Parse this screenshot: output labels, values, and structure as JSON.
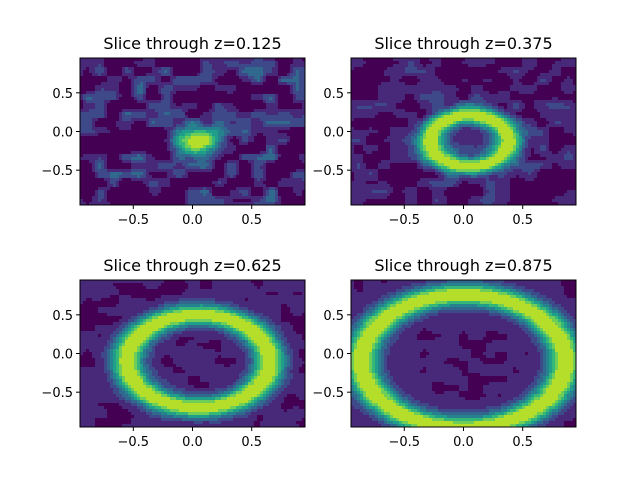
{
  "colormap": [
    "#440154",
    "#482878",
    "#3e4989",
    "#31688e",
    "#26828e",
    "#1f9e89",
    "#35b779",
    "#6ece58",
    "#b5de2b",
    "#fde725"
  ],
  "chart_data": [
    {
      "type": "contour",
      "title": "Slice through z=0.125",
      "xlim": [
        -0.95,
        0.95
      ],
      "ylim": [
        -0.95,
        0.95
      ],
      "xticks": [
        -0.5,
        0.0,
        0.5
      ],
      "xtick_labels": [
        "−0.5",
        "0.0",
        "0.5"
      ],
      "yticks": [
        0.5,
        0.0,
        -0.5
      ],
      "ytick_labels": [
        "0.5",
        "0.0",
        "−0.5"
      ],
      "field": {
        "shape": "blob",
        "center": [
          0.05,
          -0.12
        ],
        "radius": 0.0,
        "width": 0.2,
        "noise": 0.55
      }
    },
    {
      "type": "contour",
      "title": "Slice through z=0.375",
      "xlim": [
        -0.95,
        0.95
      ],
      "ylim": [
        -0.95,
        0.95
      ],
      "xticks": [
        -0.5,
        0.0,
        0.5
      ],
      "xtick_labels": [
        "−0.5",
        "0.0",
        "0.5"
      ],
      "yticks": [
        0.5,
        0.0,
        -0.5
      ],
      "ytick_labels": [
        "0.5",
        "0.0",
        "−0.5"
      ],
      "field": {
        "shape": "ring",
        "center": [
          0.05,
          -0.12
        ],
        "radius": 0.33,
        "width": 0.12,
        "noise": 0.3
      }
    },
    {
      "type": "contour",
      "title": "Slice through z=0.625",
      "xlim": [
        -0.95,
        0.95
      ],
      "ylim": [
        -0.95,
        0.95
      ],
      "xticks": [
        -0.5,
        0.0,
        0.5
      ],
      "xtick_labels": [
        "−0.5",
        "0.0",
        "0.5"
      ],
      "yticks": [
        0.5,
        0.0,
        -0.5
      ],
      "ytick_labels": [
        "0.5",
        "0.0",
        "−0.5"
      ],
      "field": {
        "shape": "ring",
        "center": [
          0.05,
          -0.1
        ],
        "radius": 0.6,
        "width": 0.14,
        "noise": 0.1
      }
    },
    {
      "type": "contour",
      "title": "Slice through z=0.875",
      "xlim": [
        -0.95,
        0.95
      ],
      "ylim": [
        -0.95,
        0.95
      ],
      "xticks": [
        -0.5,
        0.0,
        0.5
      ],
      "xtick_labels": [
        "−0.5",
        "0.0",
        "0.5"
      ],
      "yticks": [
        0.5,
        0.0,
        -0.5
      ],
      "ytick_labels": [
        "0.5",
        "0.0",
        "−0.5"
      ],
      "field": {
        "shape": "ring",
        "center": [
          0.0,
          -0.1
        ],
        "radius": 0.86,
        "width": 0.15,
        "noise": 0.05
      }
    }
  ]
}
